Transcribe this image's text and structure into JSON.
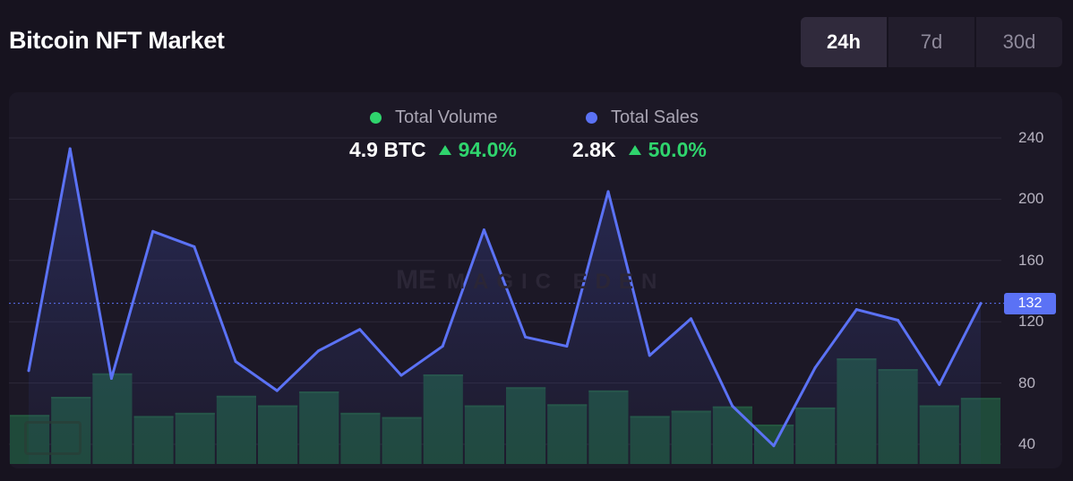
{
  "title": "Bitcoin NFT Market",
  "tabs": [
    {
      "label": "24h",
      "active": true
    },
    {
      "label": "7d",
      "active": false
    },
    {
      "label": "30d",
      "active": false
    }
  ],
  "legend": {
    "volume": {
      "label": "Total Volume",
      "value": "4.9 BTC",
      "change": "94.0%",
      "color": "#2fd46d"
    },
    "sales": {
      "label": "Total Sales",
      "value": "2.8K",
      "change": "50.0%",
      "color": "#5b72f5"
    }
  },
  "watermark": {
    "mark": "ME",
    "text": "MAGIC EDEN"
  },
  "current_value_label": "132",
  "chart_data": {
    "type": "line",
    "y_ticks": [
      240,
      200,
      160,
      120,
      80,
      40
    ],
    "ylim": [
      27,
      265
    ],
    "grid": true,
    "current_value": 132,
    "sales_line": [
      88,
      233,
      83,
      179,
      169,
      94,
      75,
      101,
      115,
      85,
      104,
      180,
      110,
      104,
      205,
      98,
      122,
      65,
      39,
      90,
      128,
      121,
      79,
      132
    ],
    "volume_bars": [
      46,
      63,
      85,
      45,
      48,
      64,
      55,
      68,
      48,
      44,
      84,
      55,
      72,
      56,
      69,
      45,
      50,
      54,
      37,
      53,
      99,
      89,
      55,
      62
    ],
    "line_color": "#5b72f5",
    "bar_color": "#1f4a3a",
    "bar_top_color": "#24573f"
  }
}
